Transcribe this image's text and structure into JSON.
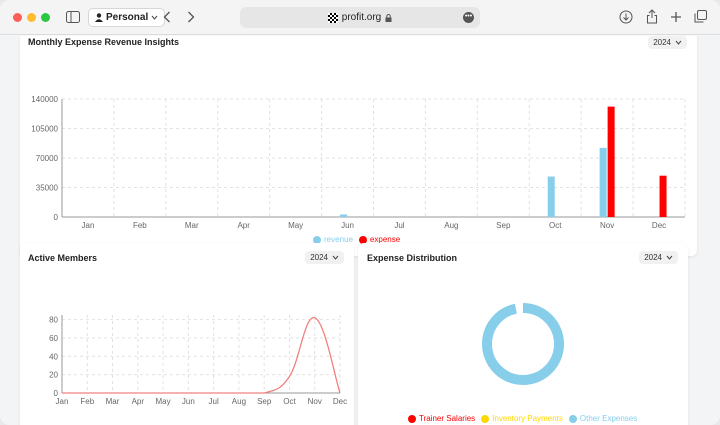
{
  "browser": {
    "profile_label": "Personal",
    "address": "profit.org"
  },
  "colors": {
    "revenue": "#87ceeb",
    "expense": "#ff0000",
    "members_line": "#f08080",
    "trainer_salaries": "#ff0000",
    "inventory_payments": "#ffd700",
    "other_expenses": "#87ceeb"
  },
  "revenue_card": {
    "title": "Monthly Expense Revenue Insights",
    "year": "2024"
  },
  "members_card": {
    "title": "Active Members",
    "year": "2024"
  },
  "distribution_card": {
    "title": "Expense Distribution",
    "year": "2024"
  },
  "chart_data": [
    {
      "type": "bar",
      "categories": [
        "Jan",
        "Feb",
        "Mar",
        "Apr",
        "May",
        "Jun",
        "Jul",
        "Aug",
        "Sep",
        "Oct",
        "Nov",
        "Dec"
      ],
      "series": [
        {
          "name": "revenue",
          "values": [
            0,
            0,
            0,
            0,
            0,
            3000,
            0,
            0,
            0,
            48000,
            82000,
            0
          ]
        },
        {
          "name": "expense",
          "values": [
            0,
            0,
            0,
            0,
            0,
            0,
            0,
            0,
            0,
            0,
            131000,
            49000
          ]
        }
      ],
      "y_ticks": [
        "0",
        "35000",
        "70000",
        "105000",
        "140000"
      ],
      "ylim": [
        0,
        140000
      ],
      "grid": true,
      "legend": "bottom"
    },
    {
      "type": "line",
      "categories": [
        "Jan",
        "Feb",
        "Mar",
        "Apr",
        "May",
        "Jun",
        "Jul",
        "Aug",
        "Sep",
        "Oct",
        "Nov",
        "Dec"
      ],
      "series": [
        {
          "values": [
            0,
            0,
            0,
            0,
            0,
            0,
            0,
            0,
            0,
            18,
            82,
            0
          ]
        }
      ],
      "y_ticks": [
        "0",
        "20",
        "40",
        "60",
        "80"
      ],
      "ylim": [
        0,
        85
      ],
      "grid": true
    },
    {
      "type": "pie",
      "donut": true,
      "labels": [
        "Trainer Salaries",
        "Inventory Payments",
        "Other Expenses"
      ],
      "values": [
        0,
        0,
        100
      ],
      "legend": "bottom"
    }
  ]
}
